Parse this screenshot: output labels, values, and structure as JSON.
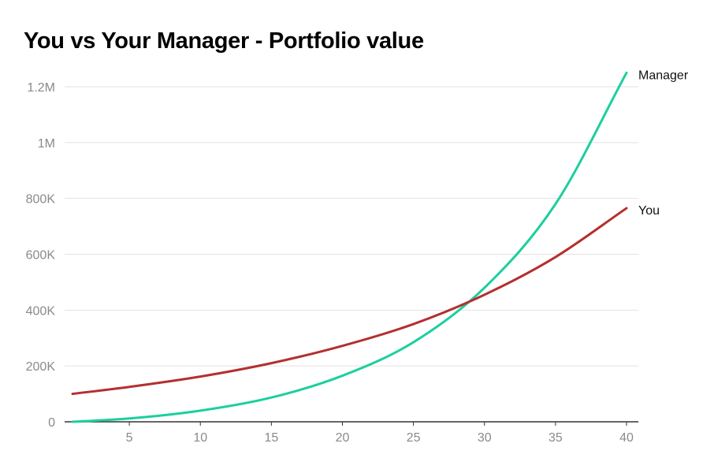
{
  "chart_data": {
    "type": "line",
    "title": "You vs Your Manager - Portfolio value",
    "xlabel": "",
    "ylabel": "",
    "xlim": [
      1,
      40
    ],
    "ylim": [
      0,
      1200000
    ],
    "x_ticks": [
      5,
      10,
      15,
      20,
      25,
      30,
      35,
      40
    ],
    "y_ticks": [
      {
        "value": 0,
        "label": "0"
      },
      {
        "value": 200000,
        "label": "200K"
      },
      {
        "value": 400000,
        "label": "400K"
      },
      {
        "value": 600000,
        "label": "600K"
      },
      {
        "value": 800000,
        "label": "800K"
      },
      {
        "value": 1000000,
        "label": "1M"
      },
      {
        "value": 1200000,
        "label": "1.2M"
      }
    ],
    "grid": true,
    "legend": "inline-at-line-end",
    "x": [
      1,
      5,
      10,
      15,
      20,
      25,
      30,
      35,
      40
    ],
    "series": [
      {
        "name": "Manager",
        "color": "#1ccf9f",
        "values": [
          0,
          12000,
          40000,
          87000,
          165000,
          285000,
          480000,
          780000,
          1250000
        ]
      },
      {
        "name": "You",
        "color": "#b42f2f",
        "values": [
          100000,
          125000,
          162000,
          210000,
          272000,
          350000,
          455000,
          590000,
          765000
        ]
      }
    ]
  }
}
